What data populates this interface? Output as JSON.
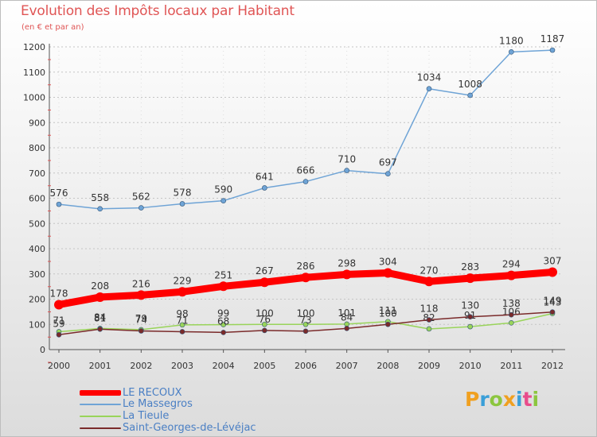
{
  "chart_data": {
    "type": "line",
    "title": "Evolution des Impôts locaux par Habitant",
    "subtitle": "(en € et par an)",
    "x": [
      "2000",
      "2001",
      "2002",
      "2003",
      "2004",
      "2005",
      "2006",
      "2007",
      "2008",
      "2009",
      "2010",
      "2011",
      "2012"
    ],
    "ylim": [
      0,
      1200
    ],
    "yticks": [
      "0",
      "100",
      "200",
      "300",
      "400",
      "500",
      "600",
      "700",
      "800",
      "900",
      "1000",
      "1100",
      "1200"
    ],
    "series": [
      {
        "name": "Le Massegros",
        "color": "#6fa4d6",
        "values": [
          576,
          558,
          562,
          578,
          590,
          641,
          666,
          710,
          697,
          1034,
          1008,
          1180,
          1187
        ],
        "labels": [
          "576",
          "558",
          "562",
          "578",
          "590",
          "641",
          "666",
          "710",
          "697",
          "1034",
          "1008",
          "1180",
          "1187"
        ]
      },
      {
        "name": "La Tieule",
        "color": "#99d45a",
        "values": [
          71,
          84,
          79,
          98,
          99,
          100,
          100,
          101,
          111,
          82,
          91,
          106,
          143
        ],
        "labels": [
          "71",
          "84",
          "79",
          "98",
          "99",
          "100",
          "100",
          "101",
          "111",
          "82",
          "91",
          "106",
          "143"
        ]
      },
      {
        "name": "Saint-Georges-de-Lévéjac",
        "color": "#7a2a2a",
        "values": [
          59,
          81,
          74,
          71,
          68,
          76,
          73,
          84,
          100,
          118,
          130,
          138,
          149
        ],
        "labels": [
          "59",
          "81",
          "74",
          "71",
          "68",
          "76",
          "73",
          "84",
          "100",
          "118",
          "130",
          "138",
          "149"
        ]
      },
      {
        "name": "LE RECOUX",
        "color": "#ff0000",
        "values": [
          178,
          208,
          216,
          229,
          251,
          267,
          286,
          298,
          304,
          270,
          283,
          294,
          307
        ],
        "labels": [
          "178",
          "208",
          "216",
          "229",
          "251",
          "267",
          "286",
          "298",
          "304",
          "270",
          "283",
          "294",
          "307"
        ]
      }
    ],
    "legend": [
      "LE RECOUX",
      "Le Massegros",
      "La Tieule",
      "Saint-Georges-de-Lévéjac"
    ],
    "grid": true
  },
  "logo": {
    "letters": [
      "P",
      "r",
      "o",
      "x",
      "i",
      "t",
      "i"
    ],
    "colors": [
      "#f0a020",
      "#3a9fd8",
      "#8cc63f",
      "#f0a020",
      "#3a9fd8",
      "#e84c8b",
      "#8cc63f"
    ]
  }
}
